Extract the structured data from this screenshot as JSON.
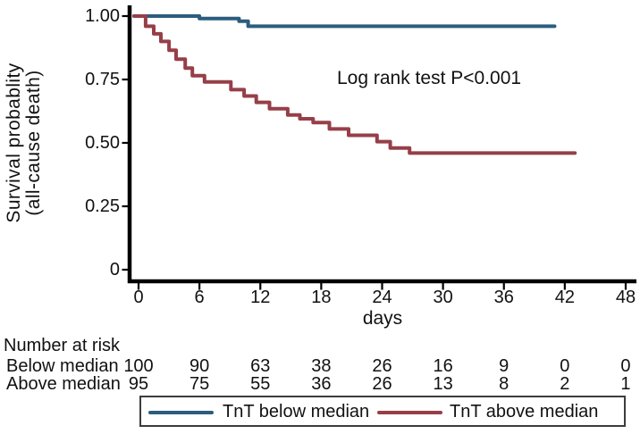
{
  "chart_data": {
    "type": "line",
    "subtype": "kaplan-meier-step",
    "xlabel": "days",
    "ylabel_line1": "Survival probablity",
    "ylabel_line2": "(all-cause death)",
    "annotation": "Log rank test P<0.001",
    "xlim": [
      0,
      48
    ],
    "ylim": [
      0,
      1
    ],
    "grid": false,
    "legend_position": "bottom",
    "axis_color": "#000000",
    "x_ticks": [
      0,
      6,
      12,
      18,
      24,
      30,
      36,
      42,
      48
    ],
    "y_ticks": [
      {
        "value": 1.0,
        "label": "1.00"
      },
      {
        "value": 0.75,
        "label": "0.75"
      },
      {
        "value": 0.5,
        "label": "0.50"
      },
      {
        "value": 0.25,
        "label": "0.25"
      },
      {
        "value": 0,
        "label": "0"
      }
    ],
    "series": [
      {
        "name": "TnT below median",
        "color": "#2b5d7e",
        "end_day": 41,
        "points": [
          [
            0,
            1.0
          ],
          [
            6,
            0.99
          ],
          [
            9.9,
            0.98
          ],
          [
            10.8,
            0.96
          ]
        ]
      },
      {
        "name": "TnT above median",
        "color": "#963f48",
        "end_day": 43,
        "points": [
          [
            0,
            1.0
          ],
          [
            0.7,
            0.96
          ],
          [
            1.5,
            0.93
          ],
          [
            2.2,
            0.9
          ],
          [
            3,
            0.865
          ],
          [
            3.7,
            0.83
          ],
          [
            4.6,
            0.795
          ],
          [
            5.3,
            0.765
          ],
          [
            6.5,
            0.74
          ],
          [
            9.1,
            0.71
          ],
          [
            10.4,
            0.685
          ],
          [
            11.6,
            0.66
          ],
          [
            12.9,
            0.635
          ],
          [
            14.7,
            0.61
          ],
          [
            15.9,
            0.595
          ],
          [
            17.2,
            0.58
          ],
          [
            18.8,
            0.555
          ],
          [
            20.7,
            0.53
          ],
          [
            23.5,
            0.505
          ],
          [
            24.8,
            0.48
          ],
          [
            26.7,
            0.46
          ]
        ]
      }
    ],
    "risk_table": {
      "header": "Number at risk",
      "time_points": [
        0,
        6,
        12,
        18,
        24,
        30,
        36,
        42,
        48
      ],
      "rows": [
        {
          "label": "Below median",
          "values": [
            100,
            90,
            63,
            38,
            26,
            16,
            9,
            0,
            0
          ]
        },
        {
          "label": "Above median",
          "values": [
            95,
            75,
            55,
            36,
            26,
            13,
            8,
            2,
            1
          ]
        }
      ]
    },
    "legend": [
      {
        "label": "TnT below median",
        "color": "#2b5d7e"
      },
      {
        "label": "TnT above median",
        "color": "#963f48"
      }
    ]
  }
}
